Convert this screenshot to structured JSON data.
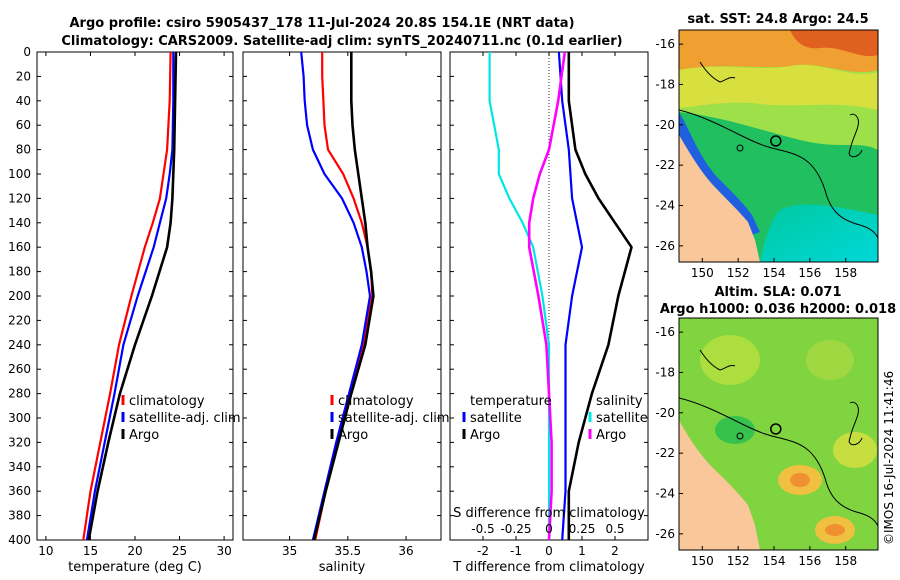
{
  "titles": {
    "line1": "Argo profile: csiro 5905437_178 11-Jul-2024 20.8S 154.1E (NRT data)",
    "line2": "Climatology: CARS2009. Satellite-adj clim: synTS_20240711.nc (0.1d earlier)"
  },
  "colors": {
    "climatology": "#ff0000",
    "satellite": "#0000ff",
    "argo": "#000000",
    "salinity_clim": "#ff00ff",
    "salinity_sat": "#00e5e5"
  },
  "chart_data": [
    {
      "type": "line",
      "name": "temperature-profile",
      "xlabel": "temperature (deg C)",
      "ylim": [
        0,
        400
      ],
      "xlim": [
        9,
        31
      ],
      "xticks": [
        "10",
        "15",
        "20",
        "25",
        "30"
      ],
      "yticks": [
        "0",
        "20",
        "40",
        "60",
        "80",
        "100",
        "120",
        "140",
        "160",
        "180",
        "200",
        "220",
        "240",
        "260",
        "280",
        "300",
        "320",
        "340",
        "360",
        "380",
        "400"
      ],
      "legend": [
        "climatology",
        "satellite-adj. clim",
        "Argo"
      ],
      "series": [
        {
          "name": "climatology",
          "depth": [
            0,
            40,
            80,
            100,
            120,
            140,
            160,
            200,
            240,
            280,
            320,
            360,
            400
          ],
          "values": [
            24.0,
            23.9,
            23.6,
            23.2,
            22.8,
            22.0,
            21.1,
            19.6,
            18.2,
            17.2,
            16.1,
            15.0,
            14.2
          ]
        },
        {
          "name": "satellite-adj. clim",
          "depth": [
            0,
            40,
            80,
            100,
            120,
            140,
            160,
            200,
            240,
            280,
            320,
            360,
            400
          ],
          "values": [
            24.3,
            24.3,
            24.2,
            23.9,
            23.5,
            22.8,
            22.1,
            20.3,
            18.7,
            17.7,
            16.6,
            15.5,
            14.6
          ]
        },
        {
          "name": "Argo",
          "depth": [
            0,
            40,
            80,
            100,
            120,
            140,
            160,
            200,
            240,
            280,
            320,
            360,
            400
          ],
          "values": [
            24.6,
            24.5,
            24.4,
            24.3,
            24.2,
            24.0,
            23.6,
            21.9,
            20.0,
            18.3,
            17.0,
            15.8,
            14.8
          ]
        }
      ]
    },
    {
      "type": "line",
      "name": "salinity-profile",
      "xlabel": "salinity",
      "ylim": [
        0,
        400
      ],
      "xlim": [
        34.6,
        36.3
      ],
      "xticks": [
        "35",
        "35.5",
        "36"
      ],
      "legend": [
        "climatology",
        "satellite-adj. clim",
        "Argo"
      ],
      "series": [
        {
          "name": "climatology",
          "depth": [
            0,
            20,
            40,
            60,
            80,
            100,
            120,
            140,
            160,
            180,
            200,
            240,
            280,
            320,
            360,
            400
          ],
          "values": [
            35.28,
            35.28,
            35.29,
            35.3,
            35.33,
            35.46,
            35.55,
            35.62,
            35.67,
            35.7,
            35.71,
            35.63,
            35.52,
            35.41,
            35.31,
            35.22
          ]
        },
        {
          "name": "satellite-adj. clim",
          "depth": [
            0,
            20,
            40,
            60,
            80,
            100,
            120,
            140,
            160,
            180,
            200,
            240,
            280,
            320,
            360,
            400
          ],
          "values": [
            35.1,
            35.12,
            35.13,
            35.15,
            35.2,
            35.3,
            35.45,
            35.55,
            35.62,
            35.66,
            35.69,
            35.62,
            35.51,
            35.4,
            35.3,
            35.2
          ]
        },
        {
          "name": "Argo",
          "depth": [
            0,
            20,
            40,
            60,
            80,
            100,
            120,
            140,
            160,
            180,
            200,
            240,
            280,
            320,
            360,
            400
          ],
          "values": [
            35.53,
            35.53,
            35.53,
            35.54,
            35.56,
            35.59,
            35.62,
            35.65,
            35.67,
            35.7,
            35.72,
            35.65,
            35.53,
            35.42,
            35.31,
            35.21
          ]
        }
      ]
    },
    {
      "type": "line",
      "name": "difference-profile",
      "xlabel": "T difference from climatology",
      "xlabel_top": "S difference from climatology",
      "ylim": [
        0,
        400
      ],
      "xlim": [
        -3,
        3
      ],
      "xticks": [
        "-2",
        "-1",
        "0",
        "1",
        "2"
      ],
      "sticks": [
        "-0.5",
        "-0.25",
        "0",
        "0.25",
        "0.5"
      ],
      "legend_left_title": "temperature",
      "legend_left": [
        "satellite",
        "Argo"
      ],
      "legend_right_title": "salinity",
      "legend_right": [
        "satellite",
        "Argo"
      ],
      "series": [
        {
          "name": "temperature satellite",
          "depth": [
            0,
            40,
            80,
            120,
            160,
            200,
            240,
            280,
            320,
            360,
            400
          ],
          "values": [
            0.3,
            0.4,
            0.6,
            0.7,
            1.0,
            0.7,
            0.5,
            0.5,
            0.5,
            0.5,
            0.4
          ]
        },
        {
          "name": "temperature Argo",
          "depth": [
            0,
            40,
            80,
            100,
            120,
            140,
            160,
            180,
            200,
            240,
            280,
            320,
            360,
            400
          ],
          "values": [
            0.6,
            0.6,
            0.8,
            1.1,
            1.5,
            2.0,
            2.5,
            2.3,
            2.1,
            1.8,
            1.3,
            0.9,
            0.6,
            0.6
          ]
        },
        {
          "name": "salinity satellite",
          "depth": [
            0,
            40,
            80,
            100,
            120,
            140,
            160,
            200,
            240,
            280,
            320,
            360,
            400
          ],
          "values": [
            -0.45,
            -0.45,
            -0.38,
            -0.38,
            -0.3,
            -0.2,
            -0.12,
            -0.05,
            0.0,
            0.0,
            0.0,
            0.0,
            0.0
          ]
        },
        {
          "name": "salinity Argo",
          "depth": [
            0,
            40,
            80,
            100,
            120,
            140,
            160,
            200,
            240,
            280,
            320,
            360,
            400
          ],
          "values": [
            0.12,
            0.07,
            0.0,
            -0.07,
            -0.12,
            -0.15,
            -0.15,
            -0.08,
            -0.02,
            0.0,
            0.02,
            0.02,
            0.0
          ]
        }
      ]
    }
  ],
  "maps": {
    "sst": {
      "title": "sat. SST: 24.8 Argo: 24.5",
      "xticks": [
        "150",
        "152",
        "154",
        "156",
        "158"
      ],
      "yticks": [
        "-16",
        "-18",
        "-20",
        "-22",
        "-24",
        "-26"
      ],
      "argo_lon": 154.1,
      "argo_lat": -20.8
    },
    "sla": {
      "title1": "Altim. SLA: 0.071",
      "title2": "Argo h1000: 0.036 h2000: 0.018",
      "xticks": [
        "150",
        "152",
        "154",
        "156",
        "158"
      ],
      "yticks": [
        "-16",
        "-18",
        "-20",
        "-22",
        "-24",
        "-26"
      ],
      "argo_lon": 154.1,
      "argo_lat": -20.8
    }
  },
  "footer": {
    "credit": "©IMOS 16-Jul-2024 11:41:46"
  }
}
